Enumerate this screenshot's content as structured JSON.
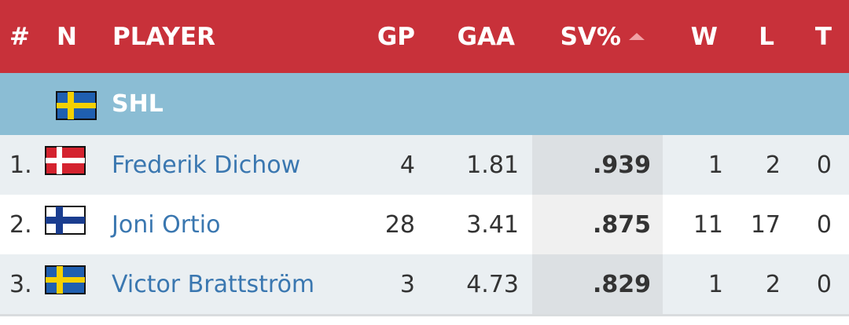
{
  "header": {
    "rank": "#",
    "nat": "N",
    "player": "PLAYER",
    "gp": "GP",
    "gaa": "GAA",
    "svp": "SV%",
    "w": "W",
    "l": "L",
    "t": "T"
  },
  "league": "SHL",
  "rows": [
    {
      "rank": "1.",
      "player": "Frederik Dichow",
      "gp": "4",
      "gaa": "1.81",
      "svp": ".939",
      "w": "1",
      "l": "2",
      "t": "0"
    },
    {
      "rank": "2.",
      "player": "Joni Ortio",
      "gp": "28",
      "gaa": "3.41",
      "svp": ".875",
      "w": "11",
      "l": "17",
      "t": "0"
    },
    {
      "rank": "3.",
      "player": "Victor Brattström",
      "gp": "3",
      "gaa": "4.73",
      "svp": ".829",
      "w": "1",
      "l": "2",
      "t": "0"
    }
  ]
}
